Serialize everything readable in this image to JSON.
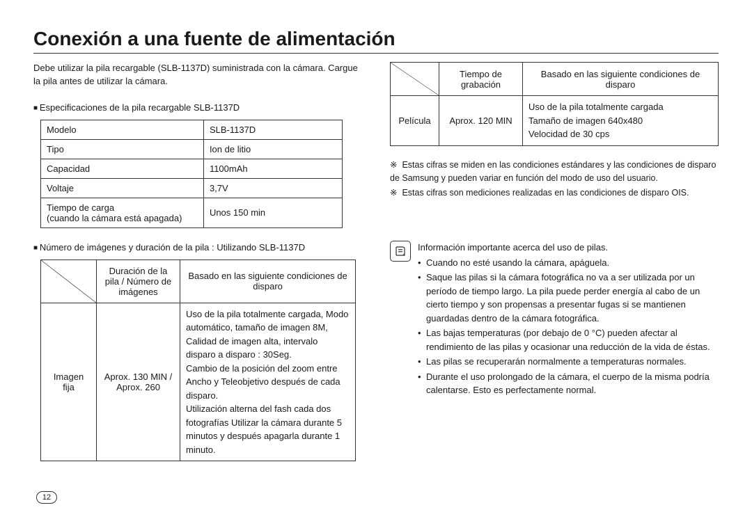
{
  "page_number": "12",
  "title": "Conexión a una fuente de alimentación",
  "intro": "Debe utilizar la pila recargable (SLB-1137D) suministrada con la cámara. Cargue la pila antes de utilizar la cámara.",
  "spec_section_label": "Especificaciones de la pila recargable SLB-1137D",
  "spec_table": {
    "rows": [
      [
        "Modelo",
        "SLB-1137D"
      ],
      [
        "Tipo",
        "Ion de litio"
      ],
      [
        "Capacidad",
        "1100mAh"
      ],
      [
        "Voltaje",
        "3,7V"
      ],
      [
        "Tiempo de carga\n(cuando la cámara está apagada)",
        "Unos 150 min"
      ]
    ]
  },
  "images_section_label": "Número de imágenes y duración de la pila : Utilizando SLB-1137D",
  "images_table": {
    "header": {
      "col2": "Duración de la pila / Número de imágenes",
      "col3": "Basado en las siguiente condiciones de disparo"
    },
    "row": {
      "label": "Imagen fija",
      "value": "Aprox. 130 MIN / Aprox. 260",
      "conditions": "Uso de la pila totalmente cargada, Modo automático, tamaño de imagen 8M, Calidad de imagen alta, intervalo disparo a disparo : 30Seg.\nCambio de la posición del zoom entre Ancho y Teleobjetivo después de cada disparo.\nUtilización alterna del fash cada dos fotografías Utilizar la cámara durante 5 minutos y después apagarla durante 1 minuto."
    }
  },
  "film_table": {
    "header": {
      "col2": "Tiempo de grabación",
      "col3": "Basado en las siguiente condiciones de disparo"
    },
    "row": {
      "label": "Película",
      "value": "Aprox. 120 MIN",
      "conditions": "Uso de la pila totalmente cargada\nTamaño de imagen 640x480\nVelocidad de 30 cps"
    }
  },
  "footnotes": [
    "Estas cifras se miden en las condiciones estándares y las condiciones de disparo de Samsung y pueden variar en función del modo de uso del usuario.",
    "Estas cifras son mediciones realizadas en las condiciones de disparo OIS."
  ],
  "footnote_prefix": "※",
  "info_box": {
    "lead": "Información importante acerca del uso de pilas.",
    "bullets": [
      "Cuando no esté usando la cámara, apáguela.",
      "Saque las pilas si la cámara fotográfica no va a ser utilizada por un período de tiempo largo. La pila puede perder energía al cabo de un cierto tiempo y son propensas a presentar fugas si se mantienen guardadas dentro de la cámara fotográfica.",
      "Las bajas temperaturas (por debajo de 0 °C) pueden afectar al rendimiento de las pilas y ocasionar una reducción de la vida de éstas.",
      "Las pilas se recuperarán normalmente a temperaturas normales.",
      "Durante el uso prolongado de la cámara, el cuerpo de la misma podría calentarse. Esto es perfectamente normal."
    ]
  },
  "colors": {
    "text": "#1a1a1a",
    "border": "#333333",
    "background": "#ffffff"
  }
}
